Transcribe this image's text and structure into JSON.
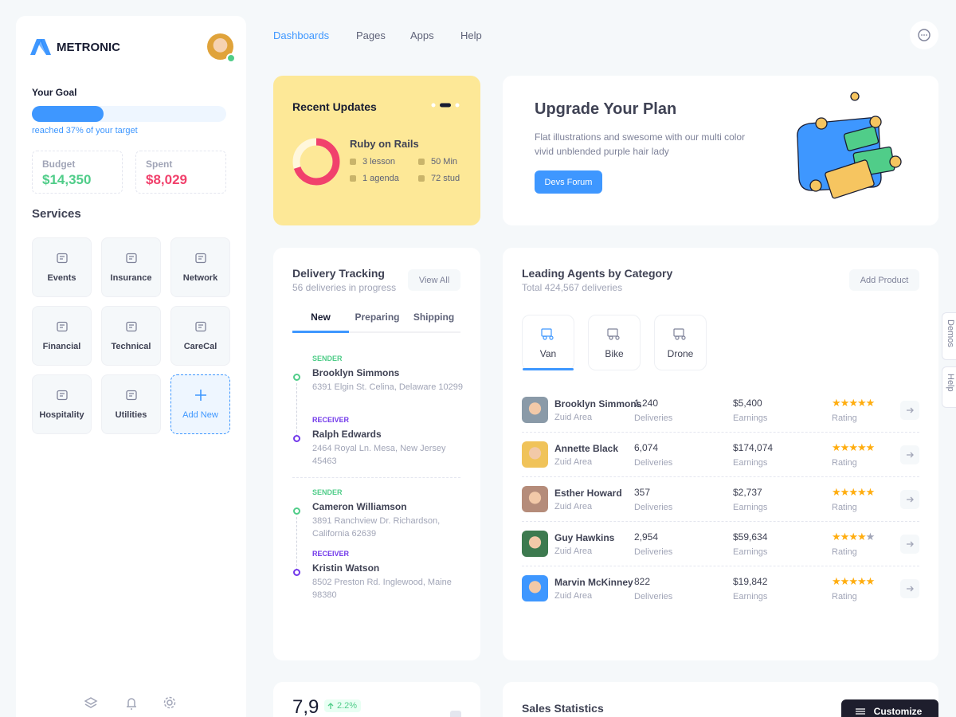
{
  "sidebar": {
    "brand": "METRONIC",
    "goal": {
      "title": "Your Goal",
      "progress": 37,
      "caption": "reached 37% of your target"
    },
    "stats": [
      {
        "label": "Budget",
        "value": "$14,350"
      },
      {
        "label": "Spent",
        "value": "$8,029"
      }
    ],
    "services_title": "Services",
    "services": [
      "Events",
      "Insurance",
      "Network",
      "Financial",
      "Technical",
      "CareCal",
      "Hospitality",
      "Utilities",
      "Add New"
    ]
  },
  "nav": [
    "Dashboards",
    "Pages",
    "Apps",
    "Help"
  ],
  "recent_updates": {
    "title": "Recent Updates",
    "course": "Ruby on Rails",
    "items": [
      "3 lesson",
      "50 Min",
      "1 agenda",
      "72 stud"
    ]
  },
  "upgrade": {
    "title": "Upgrade Your Plan",
    "text": "Flat illustrations and swesome with our multi color vivid unblended purple hair lady",
    "button": "Devs Forum"
  },
  "delivery": {
    "title": "Delivery Tracking",
    "subtitle": "56 deliveries in progress",
    "button": "View All",
    "tabs": [
      "New",
      "Preparing",
      "Shipping"
    ],
    "shipments": [
      {
        "sender_label": "SENDER",
        "sender": "Brooklyn Simmons",
        "sender_address": "6391 Elgin St. Celina, Delaware 10299",
        "receiver_label": "RECEIVER",
        "receiver": "Ralph Edwards",
        "receiver_address": "2464 Royal Ln. Mesa, New Jersey 45463"
      },
      {
        "sender_label": "SENDER",
        "sender": "Cameron Williamson",
        "sender_address": "3891 Ranchview Dr. Richardson, California 62639",
        "receiver_label": "RECEIVER",
        "receiver": "Kristin Watson",
        "receiver_address": "8502 Preston Rd. Inglewood, Maine 98380"
      }
    ]
  },
  "agents": {
    "title": "Leading Agents by Category",
    "subtitle": "Total 424,567 deliveries",
    "button": "Add Product",
    "categories": [
      "Van",
      "Bike",
      "Drone"
    ],
    "rows": [
      {
        "name": "Brooklyn Simmons",
        "area": "Zuid Area",
        "deliveries": "1,240",
        "deliveries_label": "Deliveries",
        "earnings": "$5,400",
        "earnings_label": "Earnings",
        "rating": 5,
        "rating_label": "Rating"
      },
      {
        "name": "Annette Black",
        "area": "Zuid Area",
        "deliveries": "6,074",
        "deliveries_label": "Deliveries",
        "earnings": "$174,074",
        "earnings_label": "Earnings",
        "rating": 5,
        "rating_label": "Rating"
      },
      {
        "name": "Esther Howard",
        "area": "Zuid Area",
        "deliveries": "357",
        "deliveries_label": "Deliveries",
        "earnings": "$2,737",
        "earnings_label": "Earnings",
        "rating": 5,
        "rating_label": "Rating"
      },
      {
        "name": "Guy Hawkins",
        "area": "Zuid Area",
        "deliveries": "2,954",
        "deliveries_label": "Deliveries",
        "earnings": "$59,634",
        "earnings_label": "Earnings",
        "rating": 4,
        "rating_label": "Rating"
      },
      {
        "name": "Marvin McKinney",
        "area": "Zuid Area",
        "deliveries": "822",
        "deliveries_label": "Deliveries",
        "earnings": "$19,842",
        "earnings_label": "Earnings",
        "rating": 5,
        "rating_label": "Rating"
      }
    ]
  },
  "side_tabs": [
    "Demos",
    "Help"
  ],
  "stat": {
    "value": "7,9",
    "change": "2.2%"
  },
  "sales": {
    "title": "Sales Statistics",
    "button": "Customize"
  }
}
